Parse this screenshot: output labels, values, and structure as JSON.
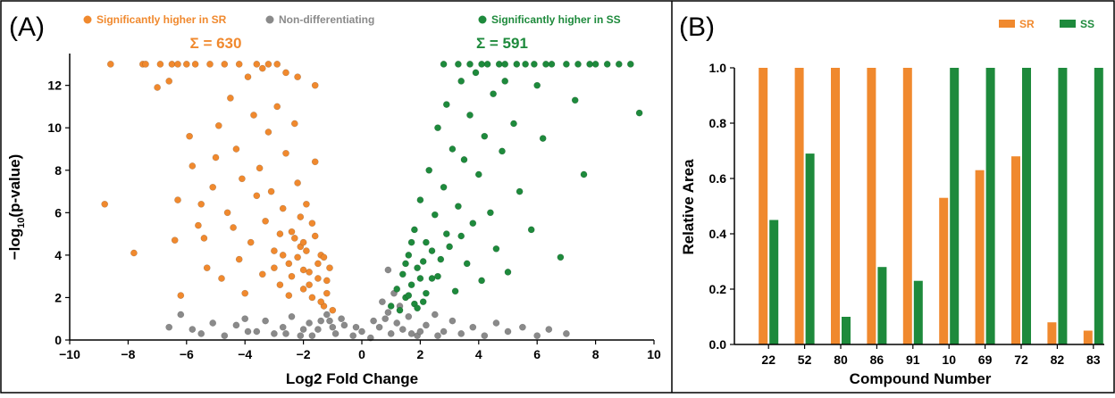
{
  "colors": {
    "sr": "#F0892E",
    "ss": "#1E8A3C",
    "non": "#8A8A8A",
    "frame": "#000000"
  },
  "chart_data": [
    {
      "type": "scatter",
      "panel_label": "(A)",
      "xlabel": "Log2 Fold Change",
      "ylabel_prefix": "−log",
      "ylabel_sub": "10",
      "ylabel_suffix": "(p-value)",
      "xlim": [
        -10,
        10
      ],
      "ylim": [
        0,
        13.5
      ],
      "xticks": [
        -10,
        -8,
        -6,
        -4,
        -2,
        0,
        2,
        4,
        6,
        8,
        10
      ],
      "yticks": [
        0,
        2,
        4,
        6,
        8,
        10,
        12
      ],
      "grid": false,
      "legend_position": "top",
      "legend": [
        {
          "label": "Significantly higher in SR",
          "color": "#F0892E"
        },
        {
          "label": "Non-differentiating",
          "color": "#8A8A8A"
        },
        {
          "label": "Significantly higher in SS",
          "color": "#1E8A3C"
        }
      ],
      "annotations": [
        {
          "text": "Σ = 630",
          "x": -5.0,
          "y": 13.8,
          "color": "#F0892E"
        },
        {
          "text": "Σ = 591",
          "x": 4.8,
          "y": 13.8,
          "color": "#1E8A3C"
        }
      ],
      "series": [
        {
          "name": "Significantly higher in SR",
          "color": "#F0892E",
          "points": [
            [
              -8.8,
              6.4
            ],
            [
              -8.6,
              13
            ],
            [
              -7.8,
              4.1
            ],
            [
              -7.5,
              13
            ],
            [
              -7.4,
              13
            ],
            [
              -7.0,
              11.9
            ],
            [
              -6.9,
              13
            ],
            [
              -6.6,
              12.2
            ],
            [
              -6.4,
              4.7
            ],
            [
              -6.3,
              6.6
            ],
            [
              -6.2,
              2.1
            ],
            [
              -6.0,
              13
            ],
            [
              -5.9,
              9.6
            ],
            [
              -5.8,
              8.2
            ],
            [
              -5.6,
              5.4
            ],
            [
              -5.5,
              6.4
            ],
            [
              -5.4,
              4.8
            ],
            [
              -5.3,
              3.4
            ],
            [
              -5.2,
              13
            ],
            [
              -5.1,
              7.2
            ],
            [
              -5.0,
              8.6
            ],
            [
              -4.9,
              10.1
            ],
            [
              -4.8,
              2.9
            ],
            [
              -4.6,
              6.0
            ],
            [
              -4.5,
              11.4
            ],
            [
              -4.4,
              5.3
            ],
            [
              -4.3,
              9.0
            ],
            [
              -4.2,
              3.8
            ],
            [
              -4.1,
              7.6
            ],
            [
              -4.0,
              2.2
            ],
            [
              -3.9,
              12.4
            ],
            [
              -3.8,
              4.6
            ],
            [
              -3.7,
              10.6
            ],
            [
              -3.6,
              6.8
            ],
            [
              -3.5,
              8.1
            ],
            [
              -3.4,
              3.1
            ],
            [
              -3.3,
              5.6
            ],
            [
              -3.2,
              9.8
            ],
            [
              -3.1,
              7.0
            ],
            [
              -3.0,
              4.2
            ],
            [
              -2.9,
              11.0
            ],
            [
              -2.8,
              2.6
            ],
            [
              -2.7,
              6.2
            ],
            [
              -2.6,
              8.8
            ],
            [
              -2.5,
              3.6
            ],
            [
              -2.4,
              5.1
            ],
            [
              -2.3,
              10.2
            ],
            [
              -2.2,
              7.4
            ],
            [
              -2.1,
              4.4
            ],
            [
              -2.0,
              2.4
            ],
            [
              -1.9,
              6.4
            ],
            [
              -1.8,
              3.2
            ],
            [
              -1.7,
              5.5
            ],
            [
              -1.6,
              8.4
            ],
            [
              -1.5,
              2.9
            ],
            [
              -1.4,
              4.0
            ],
            [
              -1.3,
              1.6
            ],
            [
              -1.2,
              2.2
            ],
            [
              -1.1,
              3.4
            ],
            [
              -1.0,
              1.4
            ],
            [
              -6.5,
              13
            ],
            [
              -6.3,
              13
            ],
            [
              -5.7,
              13
            ],
            [
              -4.7,
              13
            ],
            [
              -4.2,
              13
            ],
            [
              -3.6,
              13
            ],
            [
              -3.2,
              13
            ],
            [
              -2.9,
              13
            ],
            [
              -3.4,
              12.8
            ],
            [
              -2.6,
              12.6
            ],
            [
              -2.2,
              12.4
            ],
            [
              -1.6,
              12.0
            ],
            [
              -2.4,
              3.0
            ],
            [
              -2.2,
              3.9
            ],
            [
              -2.0,
              4.6
            ],
            [
              -1.8,
              2.6
            ],
            [
              -1.9,
              4.2
            ],
            [
              -2.3,
              4.8
            ],
            [
              -1.5,
              3.6
            ],
            [
              -1.7,
              2.0
            ],
            [
              -2.5,
              2.1
            ],
            [
              -1.2,
              2.8
            ],
            [
              -1.4,
              1.8
            ],
            [
              -2.1,
              5.8
            ],
            [
              -2.7,
              4.0
            ],
            [
              -2.8,
              5.0
            ],
            [
              -3.0,
              3.4
            ],
            [
              -1.6,
              4.9
            ],
            [
              -1.3,
              3.9
            ],
            [
              -2.0,
              3.3
            ]
          ]
        },
        {
          "name": "Non-differentiating",
          "color": "#8A8A8A",
          "points": [
            [
              -6.6,
              0.6
            ],
            [
              -6.2,
              1.2
            ],
            [
              -5.8,
              0.5
            ],
            [
              -5.5,
              0.3
            ],
            [
              -5.1,
              0.8
            ],
            [
              -4.7,
              0.2
            ],
            [
              -4.3,
              0.7
            ],
            [
              -4.0,
              1.0
            ],
            [
              -3.6,
              0.4
            ],
            [
              -3.3,
              0.9
            ],
            [
              -3.0,
              0.3
            ],
            [
              -2.7,
              0.6
            ],
            [
              -2.4,
              1.1
            ],
            [
              -2.1,
              0.2
            ],
            [
              -1.8,
              0.8
            ],
            [
              -1.5,
              0.5
            ],
            [
              -1.2,
              1.2
            ],
            [
              -0.9,
              0.3
            ],
            [
              -0.6,
              0.7
            ],
            [
              -0.3,
              0.2
            ],
            [
              0.0,
              0.4
            ],
            [
              0.3,
              0.1
            ],
            [
              0.6,
              0.6
            ],
            [
              0.8,
              1.0
            ],
            [
              1.0,
              0.3
            ],
            [
              1.2,
              0.8
            ],
            [
              1.4,
              0.5
            ],
            [
              1.6,
              1.1
            ],
            [
              1.9,
              0.2
            ],
            [
              2.2,
              0.7
            ],
            [
              2.5,
              1.2
            ],
            [
              2.8,
              0.4
            ],
            [
              3.1,
              0.9
            ],
            [
              3.4,
              0.3
            ],
            [
              3.8,
              0.6
            ],
            [
              4.2,
              0.2
            ],
            [
              4.6,
              0.8
            ],
            [
              5.0,
              0.4
            ],
            [
              5.5,
              0.6
            ],
            [
              6.0,
              0.2
            ],
            [
              6.4,
              0.5
            ],
            [
              7.0,
              0.3
            ],
            [
              -2.0,
              0.5
            ],
            [
              -1.7,
              0.2
            ],
            [
              -1.4,
              0.9
            ],
            [
              -1.0,
              0.6
            ],
            [
              -0.7,
              1.0
            ],
            [
              0.9,
              1.3
            ],
            [
              1.1,
              2.2
            ],
            [
              0.9,
              3.3
            ],
            [
              1.3,
              1.6
            ],
            [
              0.7,
              1.8
            ],
            [
              -1.1,
              0.9
            ],
            [
              2.0,
              0.4
            ],
            [
              -2.6,
              0.3
            ],
            [
              -0.2,
              0.6
            ],
            [
              0.4,
              0.9
            ],
            [
              1.7,
              0.3
            ],
            [
              2.6,
              0.2
            ],
            [
              -3.9,
              0.4
            ]
          ]
        },
        {
          "name": "Significantly higher in SS",
          "color": "#1E8A3C",
          "points": [
            [
              1.0,
              1.6
            ],
            [
              1.2,
              2.4
            ],
            [
              1.3,
              1.4
            ],
            [
              1.4,
              3.1
            ],
            [
              1.5,
              2.0
            ],
            [
              1.6,
              4.0
            ],
            [
              1.7,
              2.6
            ],
            [
              1.8,
              5.2
            ],
            [
              1.9,
              3.4
            ],
            [
              2.0,
              6.6
            ],
            [
              2.1,
              1.8
            ],
            [
              2.2,
              4.6
            ],
            [
              2.3,
              8.0
            ],
            [
              2.4,
              2.9
            ],
            [
              2.5,
              5.9
            ],
            [
              2.6,
              10.0
            ],
            [
              2.7,
              3.8
            ],
            [
              2.8,
              7.2
            ],
            [
              2.9,
              11.1
            ],
            [
              3.0,
              4.4
            ],
            [
              3.1,
              9.0
            ],
            [
              3.2,
              2.3
            ],
            [
              3.3,
              6.3
            ],
            [
              3.4,
              12.2
            ],
            [
              3.5,
              8.5
            ],
            [
              3.6,
              3.6
            ],
            [
              3.7,
              10.6
            ],
            [
              3.8,
              5.5
            ],
            [
              3.9,
              12.6
            ],
            [
              4.0,
              7.8
            ],
            [
              4.1,
              2.8
            ],
            [
              4.2,
              9.6
            ],
            [
              4.3,
              13
            ],
            [
              4.4,
              6.0
            ],
            [
              4.5,
              11.6
            ],
            [
              4.6,
              4.3
            ],
            [
              4.7,
              13
            ],
            [
              4.8,
              8.9
            ],
            [
              4.9,
              12.2
            ],
            [
              5.0,
              3.2
            ],
            [
              5.2,
              10.2
            ],
            [
              5.4,
              7.0
            ],
            [
              5.6,
              13
            ],
            [
              5.8,
              5.2
            ],
            [
              6.0,
              12.0
            ],
            [
              6.2,
              9.5
            ],
            [
              6.5,
              13
            ],
            [
              6.8,
              3.9
            ],
            [
              7.0,
              13
            ],
            [
              7.3,
              11.3
            ],
            [
              7.6,
              7.8
            ],
            [
              8.0,
              13
            ],
            [
              8.4,
              13
            ],
            [
              8.8,
              13
            ],
            [
              9.2,
              13
            ],
            [
              9.5,
              10.7
            ],
            [
              2.8,
              13
            ],
            [
              3.3,
              13
            ],
            [
              3.7,
              13
            ],
            [
              4.1,
              13
            ],
            [
              4.9,
              13
            ],
            [
              5.3,
              13
            ],
            [
              5.9,
              13
            ],
            [
              6.3,
              13
            ],
            [
              7.4,
              13
            ],
            [
              7.8,
              13
            ],
            [
              1.6,
              2.1
            ],
            [
              1.8,
              1.7
            ],
            [
              2.0,
              2.9
            ],
            [
              1.5,
              3.6
            ],
            [
              2.2,
              2.2
            ],
            [
              1.9,
              1.5
            ],
            [
              2.4,
              4.2
            ],
            [
              2.6,
              3.0
            ],
            [
              1.7,
              4.6
            ],
            [
              2.1,
              3.7
            ],
            [
              2.9,
              5.0
            ],
            [
              3.4,
              4.9
            ]
          ]
        }
      ]
    },
    {
      "type": "bar",
      "panel_label": "(B)",
      "xlabel": "Compound Number",
      "ylabel": "Relative Area",
      "categories": [
        "22",
        "52",
        "80",
        "86",
        "91",
        "10",
        "69",
        "72",
        "82",
        "83"
      ],
      "ylim": [
        0,
        1.0
      ],
      "yticks": [
        "0.0",
        "0.2",
        "0.4",
        "0.6",
        "0.8",
        "1.0"
      ],
      "grid": false,
      "legend_position": "top-right",
      "series": [
        {
          "name": "SR",
          "color": "#F0892E",
          "values": [
            1.0,
            1.0,
            1.0,
            1.0,
            1.0,
            0.53,
            0.63,
            0.68,
            0.08,
            0.05
          ]
        },
        {
          "name": "SS",
          "color": "#1E8A3C",
          "values": [
            0.45,
            0.69,
            0.1,
            0.28,
            0.23,
            1.0,
            1.0,
            1.0,
            1.0,
            1.0
          ]
        }
      ]
    }
  ]
}
